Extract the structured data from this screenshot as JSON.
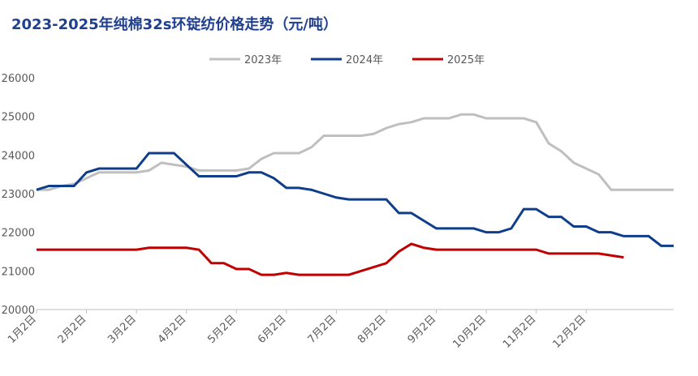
{
  "chart_data": {
    "type": "line",
    "title": "2023-2025年纯棉32s环锭纺价格走势（元/吨）",
    "categories": [
      "1月2日",
      null,
      null,
      null,
      "2月2日",
      null,
      null,
      null,
      "3月2日",
      null,
      null,
      null,
      "4月2日",
      null,
      null,
      null,
      "5月2日",
      null,
      null,
      null,
      "6月2日",
      null,
      null,
      null,
      "7月2日",
      null,
      null,
      null,
      "8月2日",
      null,
      null,
      null,
      "9月2日",
      null,
      null,
      null,
      "10月2日",
      null,
      null,
      null,
      "11月2日",
      null,
      null,
      null,
      "12月2日",
      null,
      null,
      null,
      null,
      null,
      null,
      null
    ],
    "series": [
      {
        "name": "2023年",
        "color": "#bfbfbf",
        "values": [
          23100,
          23100,
          23200,
          23250,
          23400,
          23550,
          23550,
          23550,
          23550,
          23600,
          23800,
          23750,
          23700,
          23600,
          23600,
          23600,
          23600,
          23650,
          23900,
          24050,
          24050,
          24050,
          24200,
          24500,
          24500,
          24500,
          24500,
          24550,
          24700,
          24800,
          24850,
          24950,
          24950,
          24950,
          25050,
          25050,
          24950,
          24950,
          24950,
          24950,
          24850,
          24300,
          24100,
          23800,
          23650,
          23500,
          23100,
          23100,
          23100,
          23100,
          23100,
          23100
        ]
      },
      {
        "name": "2024年",
        "color": "#0e3e8a",
        "values": [
          23100,
          23200,
          23200,
          23200,
          23550,
          23650,
          23650,
          23650,
          23650,
          24050,
          24050,
          24050,
          23750,
          23450,
          23450,
          23450,
          23450,
          23550,
          23550,
          23400,
          23150,
          23150,
          23100,
          23000,
          22900,
          22850,
          22850,
          22850,
          22850,
          22500,
          22500,
          22300,
          22100,
          22100,
          22100,
          22100,
          22000,
          22000,
          22100,
          22600,
          22600,
          22400,
          22400,
          22150,
          22150,
          22000,
          22000,
          21900,
          21900,
          21900,
          21650,
          21650
        ]
      },
      {
        "name": "2025年",
        "color": "#c00000",
        "values": [
          21550,
          21550,
          21550,
          21550,
          21550,
          21550,
          21550,
          21550,
          21550,
          21600,
          21600,
          21600,
          21600,
          21550,
          21200,
          21200,
          21050,
          21050,
          20900,
          20900,
          20950,
          20900,
          20900,
          20900,
          20900,
          20900,
          21000,
          21100,
          21200,
          21500,
          21700,
          21600,
          21550,
          21550,
          21550,
          21550,
          21550,
          21550,
          21550,
          21550,
          21550,
          21450,
          21450,
          21450,
          21450,
          21450,
          21400,
          21350,
          null,
          null,
          null,
          null
        ]
      }
    ],
    "ylim": [
      20000,
      26000
    ],
    "yticks": [
      20000,
      21000,
      22000,
      23000,
      24000,
      25000,
      26000
    ],
    "grid": false
  }
}
